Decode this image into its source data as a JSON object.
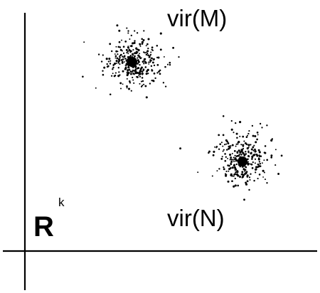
{
  "space": {
    "symbol": "R",
    "exponent": "k"
  },
  "clusters": [
    {
      "id": "M",
      "label": "vir(M)"
    },
    {
      "id": "N",
      "label": "vir(N)"
    }
  ],
  "colors": {
    "ink": "#000000",
    "background": "#ffffff"
  }
}
